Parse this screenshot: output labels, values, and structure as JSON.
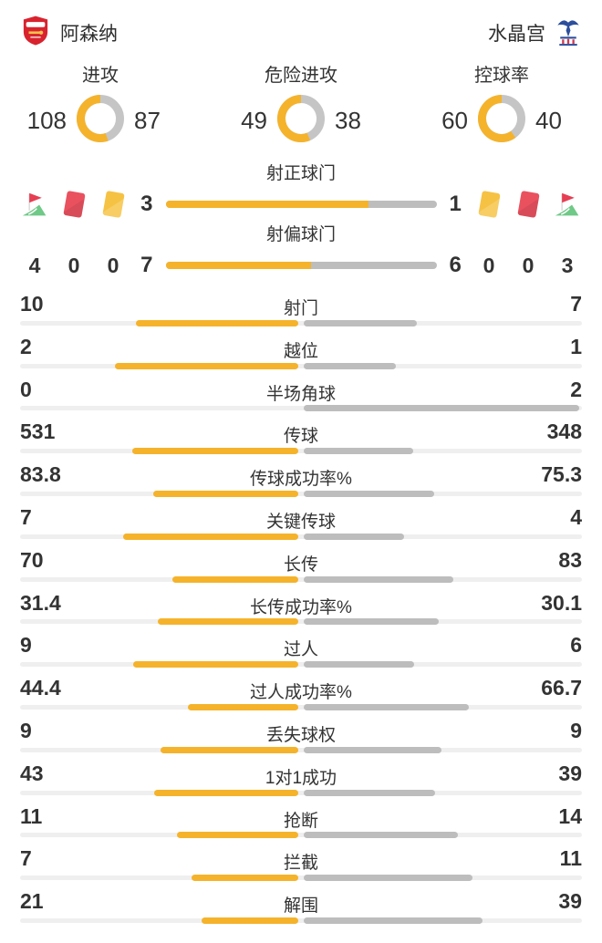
{
  "header": {
    "home": {
      "name": "阿森纳"
    },
    "away": {
      "name": "水晶宫"
    }
  },
  "colors": {
    "home_accent": "#F5B32B",
    "away_donut": "#C5C5C5",
    "away_bar": "#BDBDBD",
    "track": "#EFEFEF",
    "text": "#333333",
    "card_red": "#E9515F",
    "card_red_shade": "#D8414F",
    "card_yellow": "#F6C243",
    "flag_red": "#E63E52",
    "flag_green": "#6FC987"
  },
  "donuts": [
    {
      "id": "attacks",
      "label": "进攻",
      "home": 108,
      "away": 87
    },
    {
      "id": "dangerous-attacks",
      "label": "危险进攻",
      "home": 49,
      "away": 38
    },
    {
      "id": "possession",
      "label": "控球率",
      "home": 60,
      "away": 40
    }
  ],
  "discipline": {
    "home_icons": [
      "corner-flag",
      "red-card",
      "yellow-card"
    ],
    "away_icons": [
      "yellow-card",
      "red-card",
      "corner-flag"
    ],
    "home_counts": [
      4,
      0,
      0
    ],
    "away_counts": [
      0,
      0,
      3
    ]
  },
  "shot_rows": [
    {
      "id": "shots-on-target",
      "label": "射正球门",
      "home": 3,
      "away": 1
    },
    {
      "id": "shots-off-target",
      "label": "射偏球门",
      "home": 7,
      "away": 6
    }
  ],
  "stats": [
    {
      "label": "射门",
      "home": "10",
      "away": "7"
    },
    {
      "label": "越位",
      "home": "2",
      "away": "1"
    },
    {
      "label": "半场角球",
      "home": "0",
      "away": "2"
    },
    {
      "label": "传球",
      "home": "531",
      "away": "348"
    },
    {
      "label": "传球成功率%",
      "home": "83.8",
      "away": "75.3"
    },
    {
      "label": "关键传球",
      "home": "7",
      "away": "4"
    },
    {
      "label": "长传",
      "home": "70",
      "away": "83"
    },
    {
      "label": "长传成功率%",
      "home": "31.4",
      "away": "30.1"
    },
    {
      "label": "过人",
      "home": "9",
      "away": "6"
    },
    {
      "label": "过人成功率%",
      "home": "44.4",
      "away": "66.7"
    },
    {
      "label": "丢失球权",
      "home": "9",
      "away": "9"
    },
    {
      "label": "1对1成功",
      "home": "43",
      "away": "39"
    },
    {
      "label": "抢断",
      "home": "11",
      "away": "14"
    },
    {
      "label": "拦截",
      "home": "7",
      "away": "11"
    },
    {
      "label": "解围",
      "home": "21",
      "away": "39"
    }
  ],
  "chart_data": [
    {
      "type": "pie",
      "title": "进攻",
      "series": [
        {
          "name": "阿森纳",
          "value": 108
        },
        {
          "name": "水晶宫",
          "value": 87
        }
      ]
    },
    {
      "type": "pie",
      "title": "危险进攻",
      "series": [
        {
          "name": "阿森纳",
          "value": 49
        },
        {
          "name": "水晶宫",
          "value": 38
        }
      ]
    },
    {
      "type": "pie",
      "title": "控球率",
      "series": [
        {
          "name": "阿森纳",
          "value": 60
        },
        {
          "name": "水晶宫",
          "value": 40
        }
      ]
    },
    {
      "type": "bar",
      "categories": [
        "射正球门",
        "射偏球门",
        "射门",
        "越位",
        "半场角球",
        "传球",
        "传球成功率%",
        "关键传球",
        "长传",
        "长传成功率%",
        "过人",
        "过人成功率%",
        "丢失球权",
        "1对1成功",
        "抢断",
        "拦截",
        "解围"
      ],
      "series": [
        {
          "name": "阿森纳",
          "values": [
            3,
            7,
            10,
            2,
            0,
            531,
            83.8,
            7,
            70,
            31.4,
            9,
            44.4,
            9,
            43,
            11,
            7,
            21
          ]
        },
        {
          "name": "水晶宫",
          "values": [
            1,
            6,
            7,
            1,
            2,
            348,
            75.3,
            4,
            83,
            30.1,
            6,
            66.7,
            9,
            39,
            14,
            11,
            39
          ]
        }
      ]
    }
  ]
}
